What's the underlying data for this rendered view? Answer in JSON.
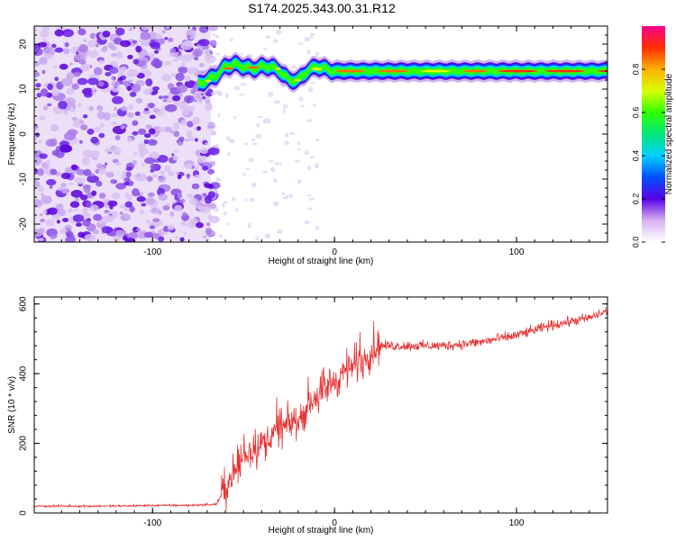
{
  "title": "S174.2025.343.00.31.R12",
  "chart_data": [
    {
      "type": "heatmap",
      "name": "spectrogram",
      "xlabel": "Height of straight line (km)",
      "ylabel": "Frequency (Hz)",
      "xlim": [
        -165,
        150
      ],
      "ylim": [
        -24,
        24
      ],
      "xticks": [
        -100,
        0,
        100
      ],
      "xtick_labels": [
        "-100",
        "0",
        "100"
      ],
      "yticks": [
        -20,
        -10,
        0,
        10,
        20
      ],
      "ytick_labels": [
        "-20",
        "-10",
        "0",
        "10",
        "20"
      ],
      "ridge": {
        "x": [
          -75,
          -70,
          -65,
          -60,
          -55,
          -50,
          -45,
          -40,
          -35,
          -30,
          -25,
          -20,
          -15,
          -10,
          -5,
          0,
          10,
          20,
          40,
          60,
          80,
          100,
          120,
          150
        ],
        "freq": [
          11,
          12,
          13,
          15,
          15.5,
          15,
          14.5,
          15,
          15,
          14,
          12,
          12,
          14,
          15,
          14.5,
          14,
          14,
          14,
          14,
          14,
          14,
          14,
          14,
          14
        ]
      },
      "noise_region_x": [
        -165,
        -68
      ],
      "colorbar": {
        "label": "Normalized spectral amplitude",
        "range": [
          0,
          1
        ],
        "ticks": [
          0.0,
          0.2,
          0.4,
          0.6,
          0.8
        ],
        "tick_labels": [
          "0.0",
          "0.2",
          "0.4",
          "0.6",
          "0.8"
        ]
      }
    },
    {
      "type": "line",
      "name": "snr",
      "xlabel": "Height of straight line (km)",
      "ylabel": "SNR (10 * v/v)",
      "xlim": [
        -165,
        150
      ],
      "ylim": [
        0,
        620
      ],
      "xticks": [
        -100,
        0,
        100
      ],
      "xtick_labels": [
        "-100",
        "0",
        "100"
      ],
      "yticks": [
        0,
        200,
        400,
        600
      ],
      "ytick_labels": [
        "0",
        "200",
        "400",
        "600"
      ],
      "line_color": "#e63232",
      "trend": {
        "x": [
          -165,
          -140,
          -120,
          -100,
          -80,
          -65,
          -60,
          -50,
          -40,
          -30,
          -20,
          -10,
          0,
          10,
          20,
          25,
          40,
          60,
          80,
          100,
          120,
          140,
          150
        ],
        "y": [
          20,
          20,
          20,
          22,
          22,
          25,
          70,
          160,
          200,
          240,
          270,
          330,
          380,
          420,
          460,
          480,
          480,
          480,
          490,
          510,
          540,
          560,
          580
        ]
      }
    }
  ]
}
